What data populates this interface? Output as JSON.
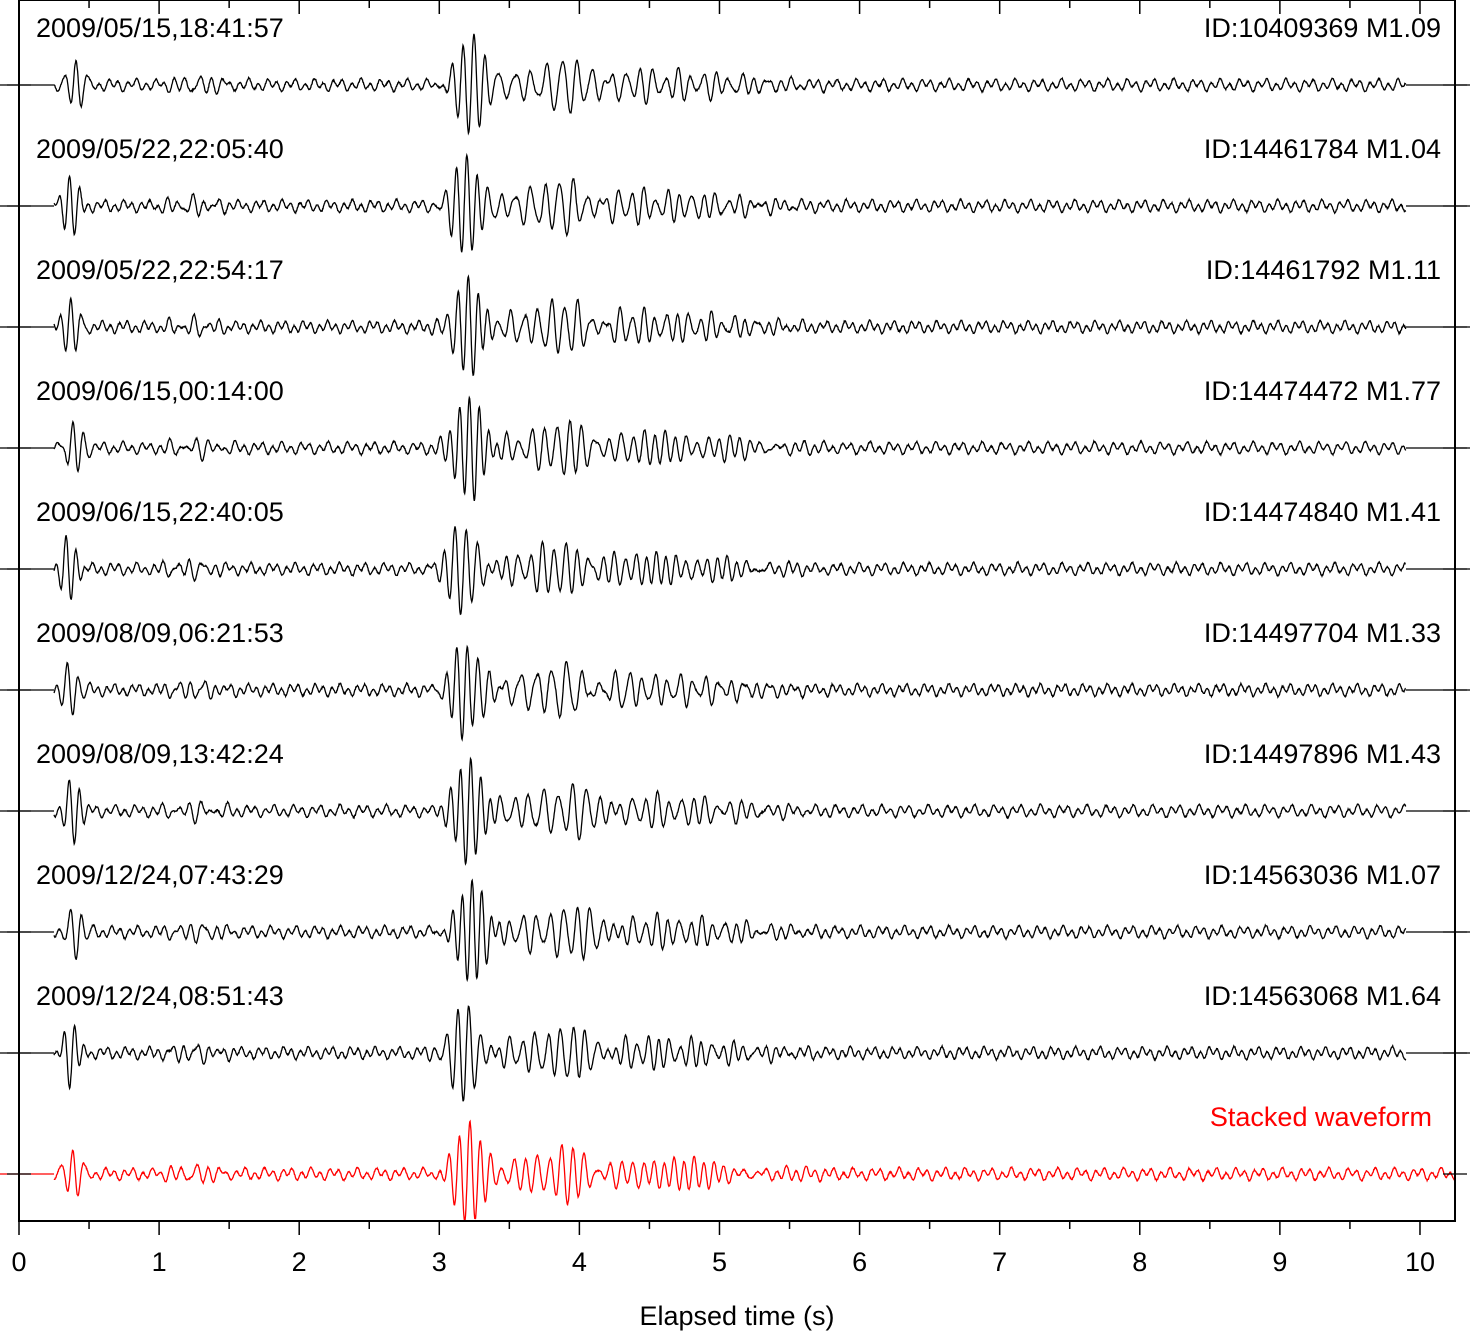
{
  "chart_data": {
    "type": "line",
    "title": "",
    "xlabel": "Elapsed time (s)",
    "ylabel": "",
    "xlim": [
      0,
      10.25
    ],
    "x_ticks_major": [
      0,
      1,
      2,
      3,
      4,
      5,
      6,
      7,
      8,
      9,
      10
    ],
    "x_ticks_minor_step": 0.5,
    "grid": false,
    "colors": {
      "trace": "#000000",
      "stack": "#ff0000",
      "axis": "#000000"
    },
    "series": [
      {
        "datetime": "2009/05/15,18:41:57",
        "id_mag": "ID:10409369 M1.09",
        "end_time": 9.9
      },
      {
        "datetime": "2009/05/22,22:05:40",
        "id_mag": "ID:14461784 M1.04",
        "end_time": 9.9
      },
      {
        "datetime": "2009/05/22,22:54:17",
        "id_mag": "ID:14461792 M1.11",
        "end_time": 9.9
      },
      {
        "datetime": "2009/06/15,00:14:00",
        "id_mag": "ID:14474472 M1.77",
        "end_time": 9.9
      },
      {
        "datetime": "2009/06/15,22:40:05",
        "id_mag": "ID:14474840 M1.41",
        "end_time": 9.9
      },
      {
        "datetime": "2009/08/09,06:21:53",
        "id_mag": "ID:14497704 M1.33",
        "end_time": 9.9
      },
      {
        "datetime": "2009/08/09,13:42:24",
        "id_mag": "ID:14497896 M1.43",
        "end_time": 9.9
      },
      {
        "datetime": "2009/12/24,07:43:29",
        "id_mag": "ID:14563036 M1.07",
        "end_time": 9.9
      },
      {
        "datetime": "2009/12/24,08:51:43",
        "id_mag": "ID:14563068 M1.64",
        "end_time": 9.9
      }
    ],
    "stack": {
      "label": "Stacked waveform",
      "end_time": 10.25
    }
  }
}
